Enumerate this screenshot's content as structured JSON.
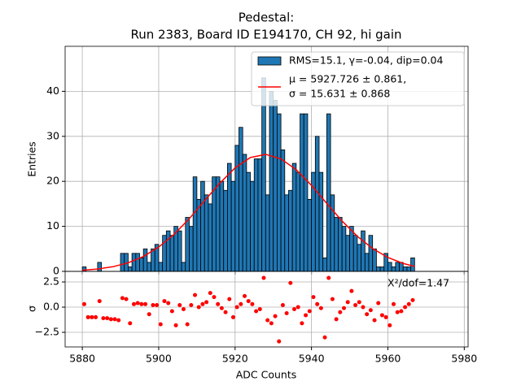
{
  "chart_data": [
    {
      "type": "histogram",
      "title": [
        "Pedestal:",
        "Run 2383, Board ID E194170, CH 92, hi gain"
      ],
      "ylabel": "Entries",
      "name": "RMS=15.1, γ=-0.04, dip=0.04",
      "color": "#1f77b4",
      "edgecolor": "#000000",
      "bins": [
        5880,
        5881,
        5882,
        5883,
        5884,
        5885,
        5886,
        5887,
        5888,
        5889,
        5890,
        5891,
        5892,
        5893,
        5894,
        5895,
        5896,
        5897,
        5898,
        5899,
        5900,
        5901,
        5902,
        5903,
        5904,
        5905,
        5906,
        5907,
        5908,
        5909,
        5910,
        5911,
        5912,
        5913,
        5914,
        5915,
        5916,
        5917,
        5918,
        5919,
        5920,
        5921,
        5922,
        5923,
        5924,
        5925,
        5926,
        5927,
        5928,
        5929,
        5930,
        5931,
        5932,
        5933,
        5934,
        5935,
        5936,
        5937,
        5938,
        5939,
        5940,
        5941,
        5942,
        5943,
        5944,
        5945,
        5946,
        5947,
        5948,
        5949,
        5950,
        5951,
        5952,
        5953,
        5954,
        5955,
        5956,
        5957,
        5958,
        5959,
        5960,
        5961,
        5962,
        5963,
        5964,
        5965,
        5966,
        5967
      ],
      "counts": [
        1,
        0,
        0,
        0,
        2,
        0,
        0,
        0,
        0,
        0,
        4,
        4,
        1,
        4,
        4,
        3,
        5,
        2,
        5,
        6,
        2,
        8,
        9,
        8,
        10,
        9,
        2,
        12,
        10,
        21,
        16,
        20,
        17,
        15,
        21,
        21,
        20,
        18,
        24,
        20,
        28,
        32,
        26,
        22,
        20,
        25,
        25,
        43,
        17,
        40,
        38,
        35,
        27,
        17,
        18,
        24,
        22,
        35,
        35,
        16,
        22,
        30,
        22,
        3,
        35,
        17,
        12,
        12,
        10,
        8,
        10,
        8,
        6,
        9,
        4,
        8,
        5,
        1,
        1,
        4,
        2,
        1,
        2,
        2,
        1,
        1,
        3
      ],
      "fit": {
        "name": [
          "μ = 5927.726 ± 0.861,",
          "σ = 15.631 ± 0.868"
        ],
        "color": "#ff0000",
        "x": [
          5880,
          5884,
          5888,
          5892,
          5896,
          5900,
          5904,
          5908,
          5912,
          5916,
          5920,
          5924,
          5928,
          5932,
          5936,
          5940,
          5944,
          5948,
          5952,
          5956,
          5960,
          5964,
          5967
        ],
        "values": [
          0.25,
          0.52,
          1.03,
          1.91,
          3.31,
          5.41,
          8.2,
          11.7,
          15.7,
          19.6,
          23.0,
          25.3,
          26.0,
          25.0,
          22.6,
          19.1,
          15.1,
          11.2,
          7.8,
          5.07,
          3.09,
          1.76,
          1.11
        ]
      },
      "xlim": [
        5875.5,
        5981
      ],
      "xticks": [
        5880,
        5900,
        5920,
        5940,
        5960,
        5980
      ],
      "ylim": [
        0,
        50
      ],
      "yticks": [
        0,
        10,
        20,
        30,
        40
      ],
      "grid": true,
      "legend": "upper right"
    },
    {
      "type": "scatter",
      "ylabel": "σ",
      "xlabel": "ADC Counts",
      "annotation": "X²/dof=1.47",
      "color": "#ff0000",
      "x": [
        5880.5,
        5881.5,
        5882.5,
        5883.5,
        5884.5,
        5885.5,
        5886.5,
        5887.5,
        5888.5,
        5889.5,
        5890.5,
        5891.5,
        5892.5,
        5893.5,
        5894.5,
        5895.5,
        5896.5,
        5897.5,
        5898.5,
        5899.5,
        5900.5,
        5901.5,
        5902.5,
        5903.5,
        5904.5,
        5905.5,
        5906.5,
        5907.5,
        5908.5,
        5909.5,
        5910.5,
        5911.5,
        5912.5,
        5913.5,
        5914.5,
        5915.5,
        5916.5,
        5917.5,
        5918.5,
        5919.5,
        5920.5,
        5921.5,
        5922.5,
        5923.5,
        5924.5,
        5925.5,
        5926.5,
        5927.5,
        5928.5,
        5929.5,
        5930.5,
        5931.5,
        5932.5,
        5933.5,
        5934.5,
        5935.5,
        5936.5,
        5937.5,
        5938.5,
        5939.5,
        5940.5,
        5941.5,
        5942.5,
        5943.5,
        5944.5,
        5945.5,
        5946.5,
        5947.5,
        5948.5,
        5949.5,
        5950.5,
        5951.5,
        5952.5,
        5953.5,
        5954.5,
        5955.5,
        5956.5,
        5957.5,
        5958.5,
        5959.5,
        5960.5,
        5961.5,
        5962.5,
        5963.5,
        5964.5,
        5965.5,
        5966.5
      ],
      "values": [
        0.3,
        -1.0,
        -1.0,
        -1.0,
        0.6,
        -1.1,
        -1.1,
        -1.2,
        -1.2,
        -1.3,
        0.9,
        0.8,
        -1.6,
        0.3,
        0.4,
        0.3,
        0.3,
        -0.7,
        0.2,
        0.2,
        -1.7,
        0.6,
        0.4,
        -0.4,
        -1.8,
        0.2,
        -0.2,
        -1.7,
        0.2,
        1.2,
        0.0,
        0.3,
        0.5,
        1.4,
        1.0,
        0.3,
        -0.1,
        -0.5,
        0.8,
        -1.0,
        0.0,
        0.3,
        1.1,
        0.6,
        0.3,
        -0.4,
        -0.2,
        2.9,
        -1.3,
        -1.6,
        -0.9,
        -3.4,
        0.2,
        -0.6,
        2.4,
        -0.2,
        0.0,
        -1.6,
        -0.8,
        -0.4,
        1.0,
        0.3,
        -0.1,
        -3.0,
        2.9,
        0.8,
        -1.2,
        -0.5,
        -0.1,
        0.5,
        1.6,
        0.2,
        0.5,
        0.0,
        -0.7,
        -0.3,
        -1.3,
        0.4,
        -0.8,
        -1.0,
        -1.8,
        0.3,
        -0.5,
        -0.4,
        0.0,
        0.3,
        0.7
      ],
      "xlim": [
        5875.5,
        5981
      ],
      "xticks": [
        5880,
        5900,
        5920,
        5940,
        5960,
        5980
      ],
      "ylim": [
        -3.95,
        3.55
      ],
      "yticks": [
        {
          "value": -2.5,
          "label": "−2.5"
        },
        {
          "value": 0,
          "label": "0.0"
        },
        2.5
      ],
      "grid": true
    }
  ]
}
